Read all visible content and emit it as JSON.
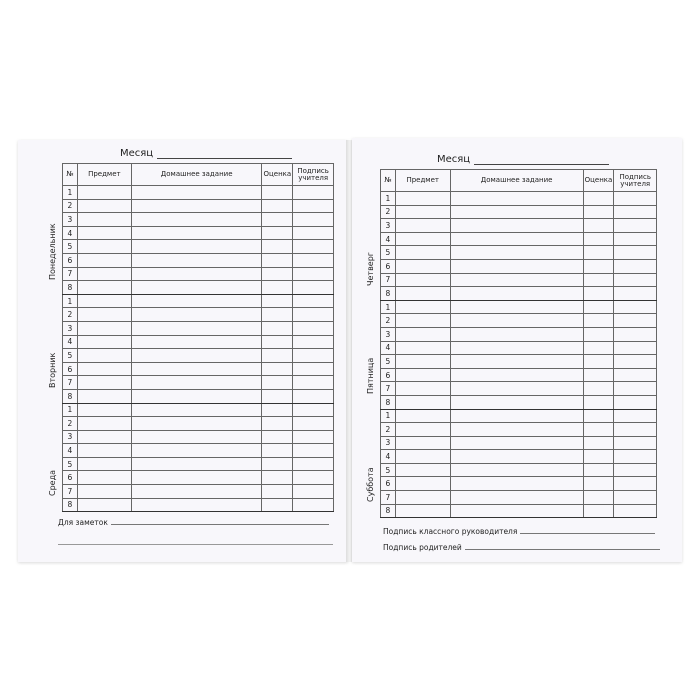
{
  "left_page": {
    "month_label": "Месяц",
    "columns": [
      "№",
      "Предмет",
      "Домашнее задание",
      "Оценка",
      "Подпись учителя"
    ],
    "days": [
      "Понедельник",
      "Вторник",
      "Среда"
    ],
    "row_numbers": [
      "1",
      "2",
      "3",
      "4",
      "5",
      "6",
      "7",
      "8"
    ],
    "notes_label": "Для заметок"
  },
  "right_page": {
    "month_label": "Месяц",
    "columns": [
      "№",
      "Предмет",
      "Домашнее задание",
      "Оценка",
      "Подпись учителя"
    ],
    "days": [
      "Четверг",
      "Пятница",
      "Суббота"
    ],
    "row_numbers": [
      "1",
      "2",
      "3",
      "4",
      "5",
      "6",
      "7",
      "8"
    ],
    "class_teacher_signature_label": "Подпись классного руководителя",
    "parents_signature_label": "Подпись родителей"
  }
}
